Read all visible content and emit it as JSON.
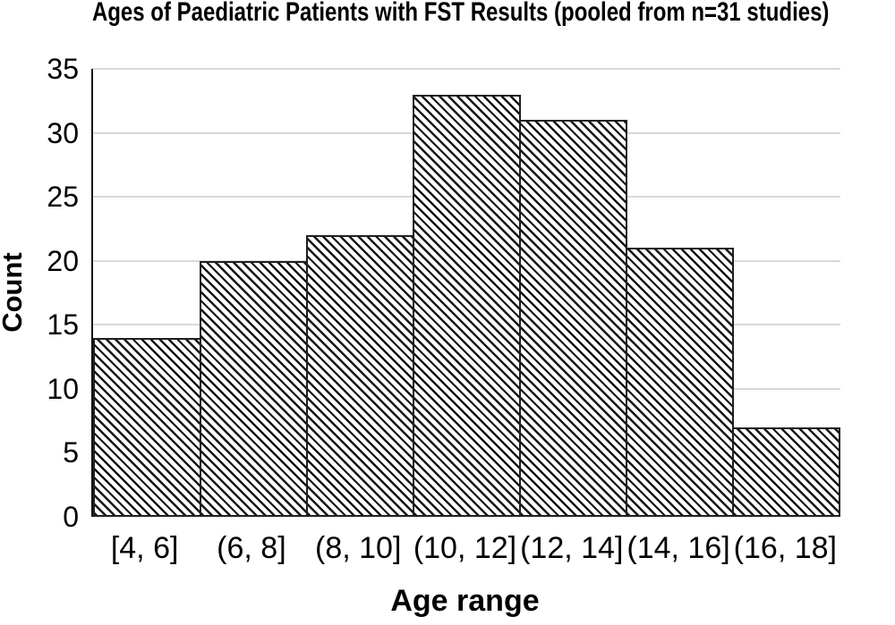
{
  "chart_data": {
    "type": "bar",
    "subtype": "histogram",
    "title": "Ages of Paediatric Patients with FST Results (pooled from n=31 studies)",
    "xlabel": "Age range",
    "ylabel": "Count",
    "categories": [
      "[4, 6]",
      "(6, 8]",
      "(8, 10]",
      "(10, 12]",
      "(12, 14]",
      "(14, 16]",
      "(16, 18]"
    ],
    "values": [
      14,
      20,
      22,
      33,
      31,
      21,
      7
    ],
    "ylim": [
      0,
      35
    ],
    "yticks": [
      0,
      5,
      10,
      15,
      20,
      25,
      30,
      35
    ],
    "grid": "horizontal-major",
    "legend": "none",
    "style": {
      "bar_fill": "#ffffff",
      "bar_hatch": "diagonal-backslash",
      "hatch_color": "#161616",
      "bar_border_color": "#1f1f1f",
      "gridline_color": "#d9d9d9",
      "axis_line_color": "#111111",
      "text_color": "#000000",
      "background": "#ffffff"
    }
  }
}
